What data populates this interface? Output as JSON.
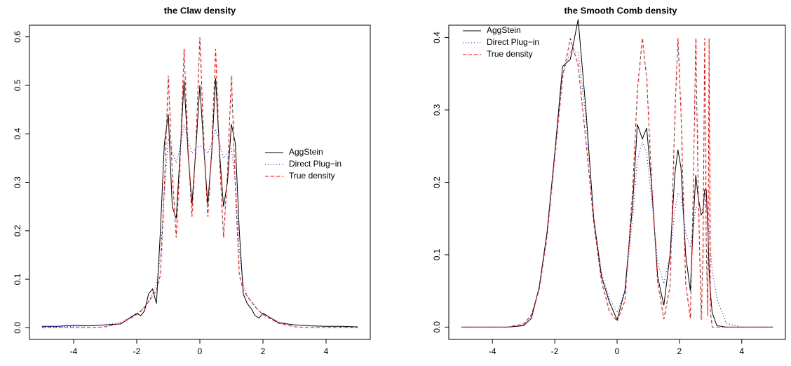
{
  "chart_data": [
    {
      "type": "line",
      "title": "the Claw density",
      "x": [
        -5,
        -4.5,
        -4,
        -3.5,
        -3,
        -2.5,
        -2,
        -1.875,
        -1.75,
        -1.625,
        -1.5,
        -1.375,
        -1.25,
        -1.125,
        -1,
        -0.875,
        -0.75,
        -0.625,
        -0.5,
        -0.375,
        -0.25,
        -0.125,
        0,
        0.125,
        0.25,
        0.375,
        0.5,
        0.625,
        0.75,
        0.875,
        1,
        1.125,
        1.25,
        1.375,
        1.5,
        1.625,
        1.75,
        1.875,
        2,
        2.5,
        3,
        3.5,
        4,
        4.5,
        5
      ],
      "series": [
        {
          "name": "AggStein",
          "color": "#000000",
          "linestyle": "solid",
          "values": [
            0.003,
            0.003,
            0.005,
            0.004,
            0.006,
            0.008,
            0.03,
            0.025,
            0.035,
            0.07,
            0.08,
            0.05,
            0.2,
            0.38,
            0.44,
            0.25,
            0.225,
            0.36,
            0.51,
            0.36,
            0.255,
            0.37,
            0.5,
            0.37,
            0.255,
            0.36,
            0.515,
            0.36,
            0.25,
            0.3,
            0.42,
            0.38,
            0.2,
            0.07,
            0.05,
            0.04,
            0.025,
            0.02,
            0.03,
            0.01,
            0.006,
            0.004,
            0.003,
            0.003,
            0.002
          ]
        },
        {
          "name": "Direct Plug−in",
          "color": "#0000ff",
          "linestyle": "dotted",
          "values": [
            0.002,
            0.002,
            0.003,
            0.004,
            0.006,
            0.012,
            0.028,
            0.033,
            0.042,
            0.055,
            0.07,
            0.09,
            0.15,
            0.28,
            0.39,
            0.36,
            0.34,
            0.37,
            0.42,
            0.39,
            0.36,
            0.37,
            0.375,
            0.37,
            0.36,
            0.38,
            0.41,
            0.38,
            0.35,
            0.36,
            0.37,
            0.3,
            0.16,
            0.09,
            0.065,
            0.055,
            0.045,
            0.035,
            0.028,
            0.012,
            0.006,
            0.004,
            0.003,
            0.002,
            0.002
          ]
        },
        {
          "name": "True density",
          "color": "#ff0000",
          "linestyle": "dashed",
          "values": [
            0,
            0,
            0,
            0,
            0.002,
            0.009,
            0.027,
            0.035,
            0.043,
            0.054,
            0.065,
            0.078,
            0.109,
            0.289,
            0.52,
            0.319,
            0.186,
            0.347,
            0.575,
            0.369,
            0.229,
            0.381,
            0.599,
            0.381,
            0.229,
            0.369,
            0.575,
            0.347,
            0.186,
            0.319,
            0.52,
            0.289,
            0.109,
            0.078,
            0.065,
            0.054,
            0.043,
            0.035,
            0.027,
            0.009,
            0.002,
            0,
            0,
            0,
            0
          ]
        }
      ],
      "xlim": [
        -5.4,
        5.4
      ],
      "xticks": [
        -4,
        -2,
        0,
        2,
        4
      ],
      "ylim": [
        -0.024,
        0.624
      ],
      "yticks": [
        {
          "value": 0,
          "label": "0.0"
        },
        0.1,
        0.2,
        0.3,
        0.4,
        0.5,
        0.6
      ],
      "legend": "right"
    },
    {
      "type": "line",
      "title": "the Smooth Comb density",
      "x": [
        -5,
        -4,
        -3.5,
        -3,
        -2.75,
        -2.5,
        -2.25,
        -2,
        -1.75,
        -1.5,
        -1.25,
        -1,
        -0.75,
        -0.5,
        -0.25,
        0,
        0.25,
        0.5,
        0.65,
        0.81,
        0.95,
        1.1,
        1.3,
        1.5,
        1.7,
        1.85,
        1.952,
        2.05,
        2.2,
        2.35,
        2.45,
        2.524,
        2.6,
        2.7,
        2.76,
        2.81,
        2.86,
        2.91,
        2.952,
        2.99,
        3.05,
        3.2,
        3.5,
        4,
        5
      ],
      "series": [
        {
          "name": "AggStein",
          "color": "#000000",
          "linestyle": "solid",
          "values": [
            0,
            0,
            0,
            0.002,
            0.012,
            0.055,
            0.13,
            0.24,
            0.36,
            0.37,
            0.425,
            0.3,
            0.15,
            0.07,
            0.035,
            0.01,
            0.05,
            0.17,
            0.28,
            0.26,
            0.275,
            0.2,
            0.07,
            0.03,
            0.1,
            0.21,
            0.245,
            0.22,
            0.1,
            0.05,
            0.15,
            0.21,
            0.18,
            0.155,
            0.16,
            0.19,
            0.19,
            0.14,
            0.08,
            0.05,
            0.02,
            0.002,
            0,
            0,
            0
          ]
        },
        {
          "name": "Direct Plug−in",
          "color": "#0000ff",
          "linestyle": "dotted",
          "values": [
            0,
            0,
            0,
            0.003,
            0.015,
            0.055,
            0.13,
            0.24,
            0.35,
            0.38,
            0.38,
            0.29,
            0.15,
            0.075,
            0.04,
            0.02,
            0.05,
            0.15,
            0.23,
            0.255,
            0.24,
            0.18,
            0.09,
            0.06,
            0.1,
            0.16,
            0.185,
            0.18,
            0.13,
            0.11,
            0.14,
            0.165,
            0.165,
            0.16,
            0.165,
            0.17,
            0.165,
            0.15,
            0.13,
            0.11,
            0.08,
            0.04,
            0.005,
            0,
            0
          ]
        },
        {
          "name": "True density",
          "color": "#ff0000",
          "linestyle": "dashed",
          "values": [
            0,
            0,
            0.0001,
            0.0044,
            0.017,
            0.052,
            0.125,
            0.235,
            0.345,
            0.399,
            0.361,
            0.257,
            0.144,
            0.063,
            0.022,
            0.008,
            0.036,
            0.19,
            0.327,
            0.399,
            0.343,
            0.208,
            0.062,
            0.011,
            0.057,
            0.29,
            0.399,
            0.296,
            0.06,
            0.012,
            0.202,
            0.399,
            0.195,
            0.01,
            0.116,
            0.399,
            0.115,
            0.015,
            0.399,
            0.023,
            0,
            0,
            0,
            0,
            0
          ]
        }
      ],
      "xlim": [
        -5.4,
        5.4
      ],
      "xticks": [
        -4,
        -2,
        0,
        2,
        4
      ],
      "ylim": [
        -0.017,
        0.417
      ],
      "yticks": [
        {
          "value": 0,
          "label": "0.0"
        },
        0.1,
        0.2,
        0.3,
        0.4
      ],
      "legend": "topleft"
    }
  ]
}
